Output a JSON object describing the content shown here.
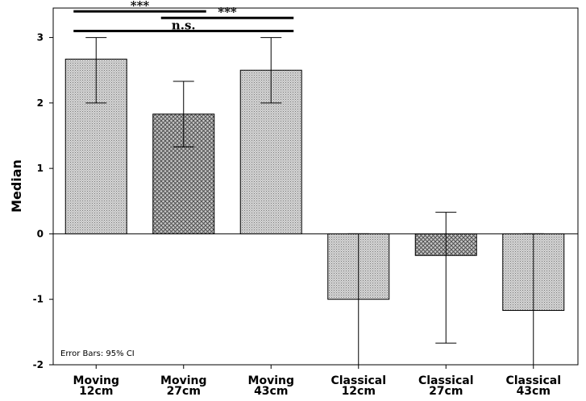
{
  "chart_data": {
    "type": "bar",
    "categories": [
      [
        "Moving",
        "12cm"
      ],
      [
        "Moving",
        "27cm"
      ],
      [
        "Moving",
        "43cm"
      ],
      [
        "Classical",
        "12cm"
      ],
      [
        "Classical",
        "27cm"
      ],
      [
        "Classical",
        "43cm"
      ]
    ],
    "values": [
      2.67,
      1.83,
      2.5,
      -1.0,
      -0.33,
      -1.17
    ],
    "error_bars": [
      [
        2.0,
        3.0
      ],
      [
        1.33,
        2.33
      ],
      [
        2.0,
        3.0
      ],
      [
        -2.0,
        0.0
      ],
      [
        -1.67,
        0.33
      ],
      [
        -2.0,
        0.0
      ]
    ],
    "patterns": [
      "dots",
      "crosshatch",
      "dots",
      "dots",
      "crosshatch",
      "dots"
    ],
    "ylabel": "Median",
    "xlabel": "",
    "ylim": [
      -2,
      3.45
    ],
    "yticks": [
      -2,
      -1,
      0,
      1,
      2,
      3
    ],
    "ytick_labels": [
      "-2",
      "-1",
      "0",
      "1",
      "2",
      "3"
    ],
    "note": "Error Bars: 95% CI",
    "significance": [
      {
        "from": 0,
        "to": 1,
        "label": "***",
        "y": 3.4
      },
      {
        "from": 1,
        "to": 2,
        "label": "***",
        "y": 3.3
      },
      {
        "from": 0,
        "to": 2,
        "label": "n.s.",
        "y": 3.1
      }
    ],
    "colors": {
      "bar_fill": "#bdbdbd",
      "pattern_dark": "#555555",
      "axis": "#000000",
      "background": "#ffffff"
    }
  }
}
